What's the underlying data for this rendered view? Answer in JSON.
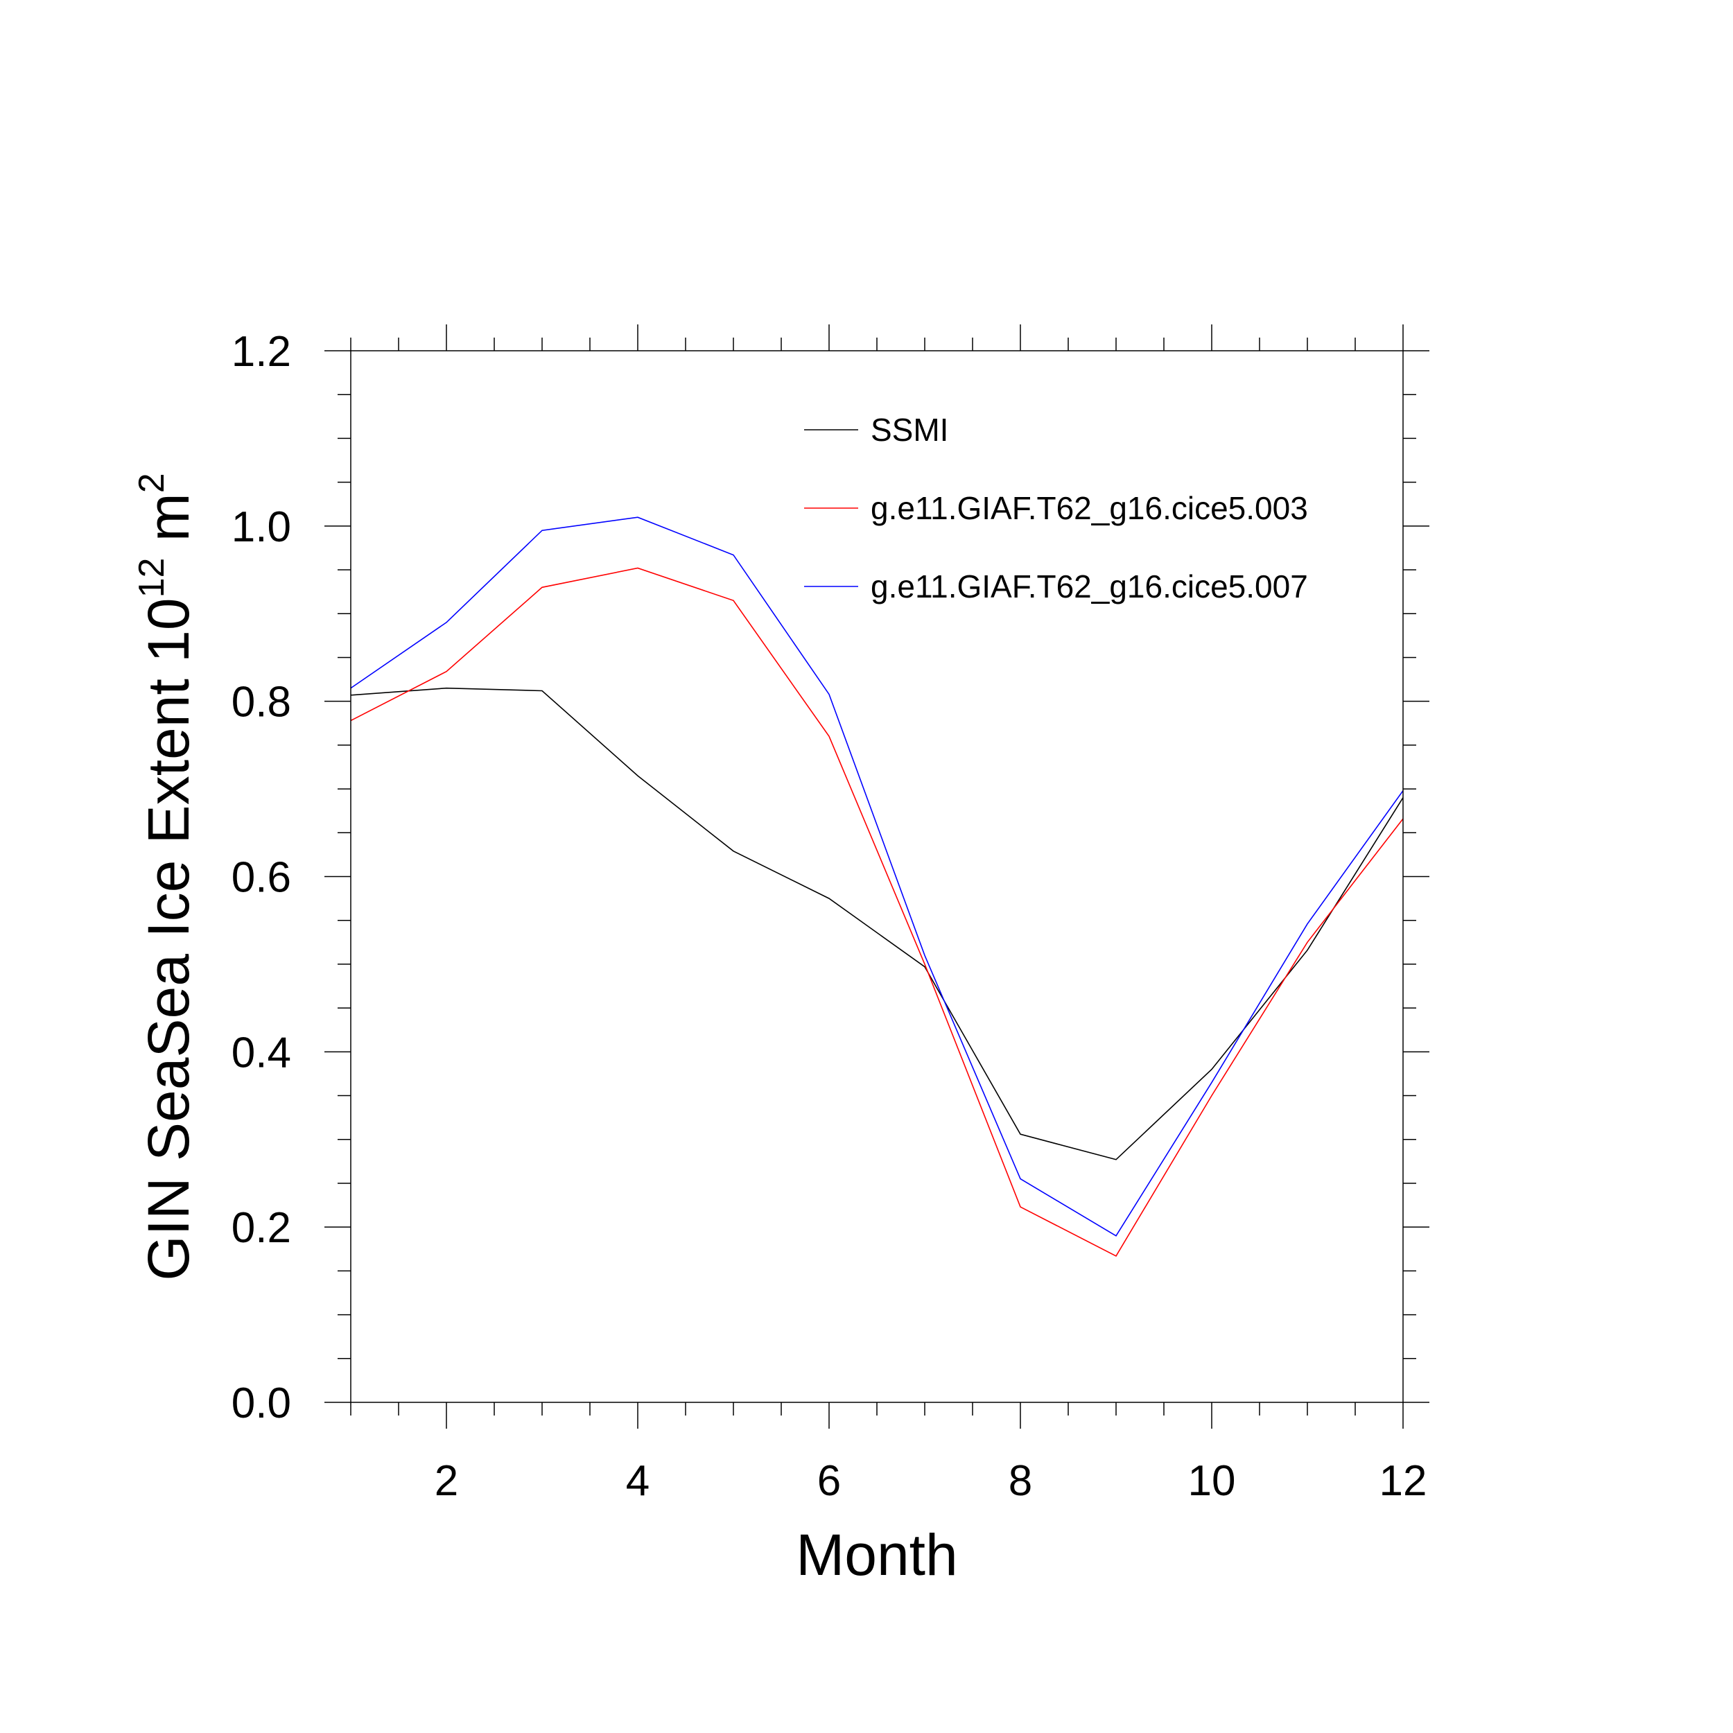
{
  "chart_data": {
    "type": "line",
    "title": "",
    "xlabel": "Month",
    "ylabel": {
      "main": "GIN SeaSea Ice Extent 10",
      "exp1": "12",
      "unit": " m",
      "exp2": "2"
    },
    "xlim": [
      1,
      12
    ],
    "ylim": [
      0.0,
      1.2
    ],
    "xticks": [
      2,
      4,
      6,
      8,
      10,
      12
    ],
    "yticks": [
      "0.0",
      "0.2",
      "0.4",
      "0.6",
      "0.8",
      "1.0",
      "1.2"
    ],
    "x": [
      1,
      2,
      3,
      4,
      5,
      6,
      7,
      8,
      9,
      10,
      11,
      12
    ],
    "series": [
      {
        "name": "SSMI",
        "color": "#000000",
        "values": [
          0.807,
          0.815,
          0.812,
          0.715,
          0.629,
          0.575,
          0.497,
          0.306,
          0.277,
          0.38,
          0.516,
          0.69
        ]
      },
      {
        "name": "g.e11.GIAF.T62_g16.cice5.003",
        "color": "#ff0000",
        "values": [
          0.778,
          0.834,
          0.93,
          0.952,
          0.915,
          0.76,
          0.5,
          0.223,
          0.167,
          0.35,
          0.525,
          0.666
        ]
      },
      {
        "name": "g.e11.GIAF.T62_g16.cice5.007",
        "color": "#0000ff",
        "values": [
          0.815,
          0.89,
          0.995,
          1.01,
          0.967,
          0.808,
          0.51,
          0.255,
          0.19,
          0.365,
          0.546,
          0.698
        ]
      }
    ],
    "grid": false,
    "legend_position": "top-right"
  }
}
